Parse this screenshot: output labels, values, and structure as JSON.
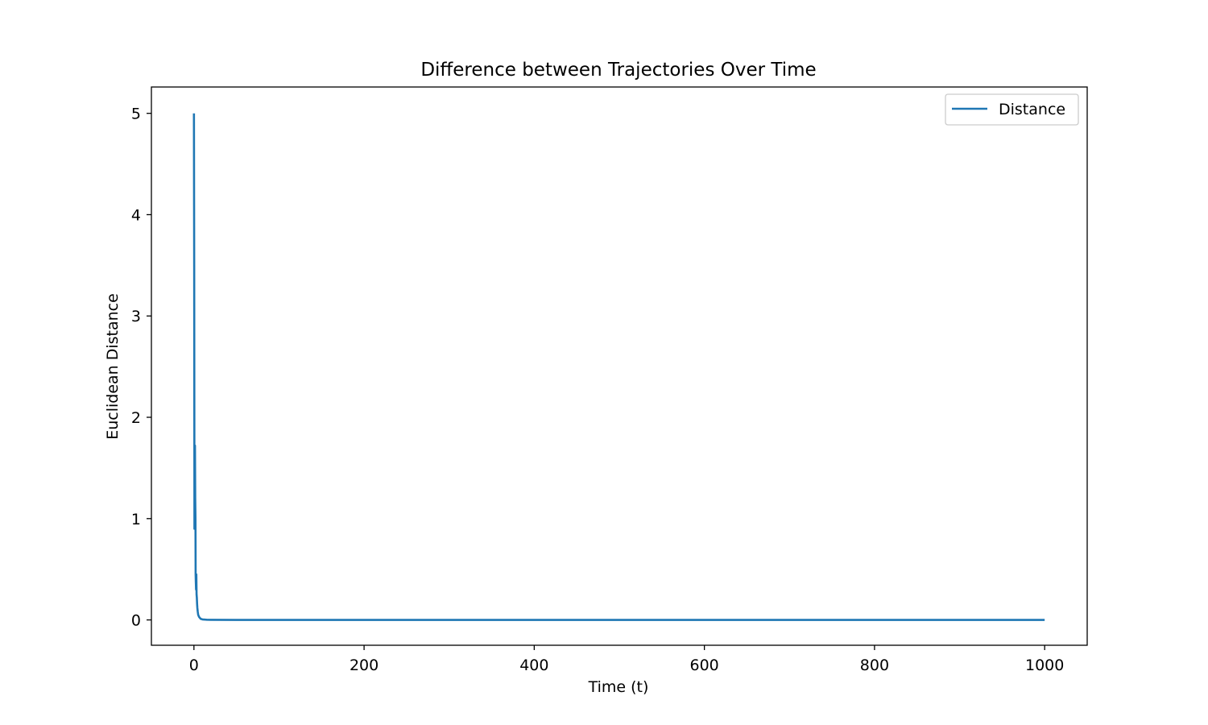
{
  "chart_data": {
    "type": "line",
    "title": "Difference between Trajectories Over Time",
    "xlabel": "Time (t)",
    "ylabel": "Euclidean Distance",
    "xlim": [
      -50,
      1050
    ],
    "ylim": [
      -0.25,
      5.26
    ],
    "xticks": [
      0,
      200,
      400,
      600,
      800,
      1000
    ],
    "yticks": [
      0,
      1,
      2,
      3,
      4,
      5
    ],
    "grid": false,
    "legend_position": "top-right",
    "series": [
      {
        "name": "Distance",
        "color": "#1f77b4",
        "x": [
          0,
          0.3,
          0.6,
          0.9,
          1.2,
          1.5,
          1.8,
          2.0,
          2.2,
          2.5,
          2.8,
          3.1,
          3.4,
          3.7,
          4.0,
          4.5,
          5.0,
          6.0,
          7.0,
          8.0,
          10.0,
          15.0,
          20.0,
          50.0,
          100.0,
          200.0,
          400.0,
          600.0,
          800.0,
          1000.0
        ],
        "y": [
          5.0,
          3.5,
          0.9,
          1.2,
          1.72,
          1.2,
          1.0,
          0.45,
          0.38,
          0.3,
          0.45,
          0.25,
          0.22,
          0.16,
          0.12,
          0.08,
          0.05,
          0.03,
          0.02,
          0.01,
          0.005,
          0.002,
          0.001,
          0.0,
          0.0,
          0.0,
          0.0,
          0.0,
          0.0,
          0.0
        ]
      }
    ]
  }
}
